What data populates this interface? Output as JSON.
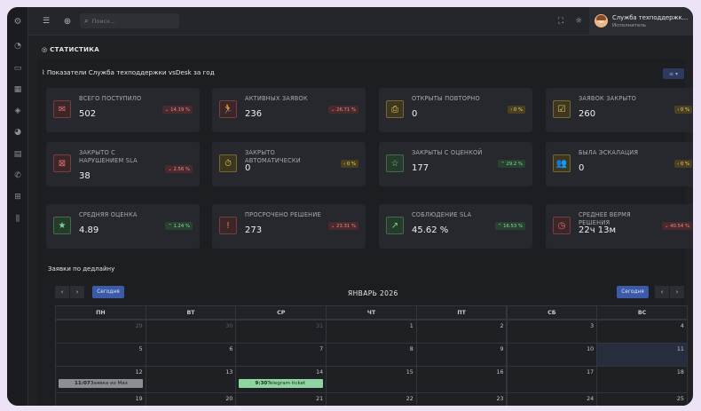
{
  "header": {
    "search_placeholder": "Поиск...",
    "user_name": "Служба техподдержк...",
    "user_role": "Исполнитель"
  },
  "page": {
    "breadcrumb": "СТАТИСТИКА",
    "panel_title": "Показатели Служба техподдержки vsDesk за год",
    "filter_label": "≡ ▾"
  },
  "cards": [
    {
      "label": "ВСЕГО ПОСТУПИЛО",
      "value": "502",
      "badge": "14.19 %",
      "trend": "down",
      "color": "#d45d5d",
      "icon": "mail-icon",
      "glyph": "✉"
    },
    {
      "label": "АКТИВНЫХ ЗАЯВОК",
      "value": "236",
      "badge": "26.71 %",
      "trend": "down",
      "color": "#d45d5d",
      "icon": "running-icon",
      "glyph": "🏃"
    },
    {
      "label": "ОТКРЫТЫ ПОВТОРНО",
      "value": "0",
      "badge": "0 %",
      "trend": "flat",
      "color": "#e1c85a",
      "icon": "reopen-icon",
      "glyph": "⎙"
    },
    {
      "label": "ЗАЯВОК ЗАКРЫТО",
      "value": "260",
      "badge": "0 %",
      "trend": "flat",
      "color": "#e1c85a",
      "icon": "check-square-icon",
      "glyph": "☑"
    },
    {
      "label": "ЗАКРЫТО С НАРУШЕНИЕМ SLA",
      "value": "38",
      "badge": "2.56 %",
      "trend": "down",
      "color": "#d45d5d",
      "icon": "calendar-x-icon",
      "glyph": "⊠"
    },
    {
      "label": "ЗАКРЫТО АВТОМАТИЧЕСКИ",
      "value": "0",
      "badge": "0 %",
      "trend": "flat",
      "color": "#e1c85a",
      "icon": "timer-icon",
      "glyph": "⏱"
    },
    {
      "label": "ЗАКРЫТЫ С ОЦЕНКОЙ",
      "value": "177",
      "badge": "29.2 %",
      "trend": "up",
      "color": "#6fc27f",
      "icon": "star-outline-icon",
      "glyph": "☆"
    },
    {
      "label": "БЫЛА ЭСКАЛАЦИЯ",
      "value": "0",
      "badge": "0 %",
      "trend": "flat",
      "color": "#e1c85a",
      "icon": "users-icon",
      "glyph": "👥"
    },
    {
      "label": "СРЕДНЯЯ ОЦЕНКА",
      "value": "4.89",
      "badge": "1.24 %",
      "trend": "up",
      "color": "#6fc27f",
      "icon": "star-filled-icon",
      "glyph": "★"
    },
    {
      "label": "ПРОСРОЧЕНО РЕШЕНИЕ",
      "value": "273",
      "badge": "23.31 %",
      "trend": "down",
      "color": "#d45d5d",
      "icon": "alert-icon",
      "glyph": "!"
    },
    {
      "label": "СОБЛЮДЕНИЕ SLA",
      "value": "45.62 %",
      "badge": "16.53 %",
      "trend": "up",
      "color": "#6fc27f",
      "icon": "chart-line-icon",
      "glyph": "↗"
    },
    {
      "label": "СРЕДНЕЕ ВЕРМЯ РЕШЕНИЯ",
      "value": "22ч 13м",
      "badge": "40.54 %",
      "trend": "down",
      "color": "#d45d5d",
      "icon": "clock-icon",
      "glyph": "◷"
    }
  ],
  "calendar": {
    "title": "Заявки по дедлайну",
    "today_label": "Сегодня",
    "month": "ЯНВАРЬ 2026",
    "weekdays": [
      "ПН",
      "ВТ",
      "СР",
      "ЧТ",
      "ПТ",
      "СБ",
      "ВС"
    ],
    "rows": [
      [
        "29",
        "30",
        "31",
        "1",
        "2",
        "3",
        "4"
      ],
      [
        "5",
        "6",
        "7",
        "8",
        "9",
        "10",
        "11"
      ],
      [
        "12",
        "13",
        "14",
        "15",
        "16",
        "17",
        "18"
      ],
      [
        "19",
        "20",
        "21",
        "22",
        "23",
        "24",
        "25"
      ]
    ],
    "events": [
      {
        "time": "11:07",
        "title": "Заявка из Max",
        "color": "#8b8e93"
      },
      {
        "time": "9:30",
        "title": "Telegram ticket",
        "color": "#8ed59f"
      }
    ]
  }
}
